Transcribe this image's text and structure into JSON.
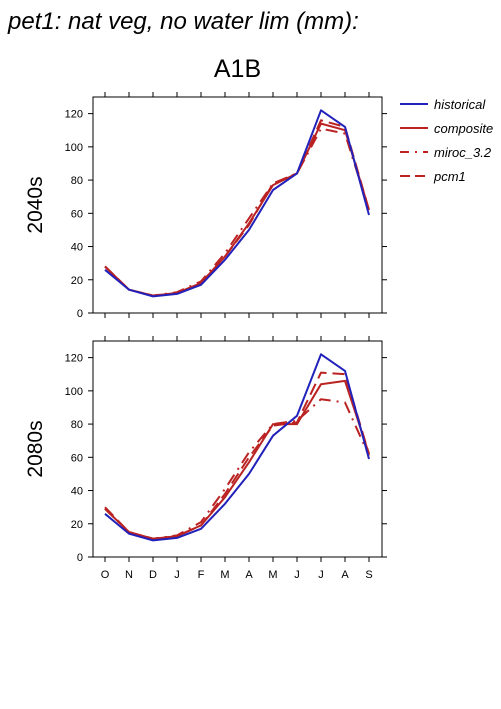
{
  "header": {
    "title": "pet1: nat veg, no water lim (mm):",
    "scenario": "A1B"
  },
  "colors": {
    "historical": "#2222bb",
    "composite": "#bb2222",
    "miroc_3.2": "#bb2222",
    "pcm1": "#bb2222"
  },
  "chart_data": [
    {
      "type": "line",
      "panel_label": "2040s",
      "categories": [
        "O",
        "N",
        "D",
        "J",
        "F",
        "M",
        "A",
        "M",
        "J",
        "J",
        "A",
        "S"
      ],
      "ylim": [
        0,
        130
      ],
      "yticks": [
        0,
        20,
        40,
        60,
        80,
        100,
        120
      ],
      "grid": false,
      "legend_position": "right",
      "series": [
        {
          "name": "historical",
          "style": "solid",
          "values": [
            26,
            14,
            10,
            11.5,
            17,
            32,
            50,
            74,
            84,
            122,
            112,
            59
          ]
        },
        {
          "name": "composite",
          "style": "solid",
          "values": [
            28,
            14,
            10.5,
            12,
            18,
            34,
            54,
            77,
            84,
            114,
            110,
            62
          ]
        },
        {
          "name": "miroc_3.2",
          "style": "dashdot",
          "values": [
            28,
            14,
            10.5,
            12.5,
            19,
            36,
            57,
            78,
            84,
            111,
            108,
            62
          ]
        },
        {
          "name": "pcm1",
          "style": "dash",
          "values": [
            28,
            14,
            10.5,
            12,
            18,
            34,
            53,
            78,
            84,
            116,
            112,
            62
          ]
        }
      ]
    },
    {
      "type": "line",
      "panel_label": "2080s",
      "categories": [
        "O",
        "N",
        "D",
        "J",
        "F",
        "M",
        "A",
        "M",
        "J",
        "J",
        "A",
        "S"
      ],
      "ylim": [
        0,
        130
      ],
      "yticks": [
        0,
        20,
        40,
        60,
        80,
        100,
        120
      ],
      "grid": false,
      "legend_position": "right",
      "series": [
        {
          "name": "historical",
          "style": "solid",
          "values": [
            26,
            14,
            10,
            11.5,
            17,
            32,
            50,
            73,
            85,
            122,
            112,
            59
          ]
        },
        {
          "name": "composite",
          "style": "solid",
          "values": [
            29,
            15,
            11,
            12.5,
            19,
            36,
            57,
            80,
            80,
            104,
            106,
            62
          ]
        },
        {
          "name": "miroc_3.2",
          "style": "dashdot",
          "values": [
            29,
            15,
            11,
            13,
            21,
            41,
            63,
            80,
            82,
            95,
            93,
            61
          ]
        },
        {
          "name": "pcm1",
          "style": "dash",
          "values": [
            30,
            15,
            11,
            12.5,
            19,
            38,
            60,
            79,
            81,
            111,
            110,
            62
          ]
        }
      ]
    }
  ]
}
